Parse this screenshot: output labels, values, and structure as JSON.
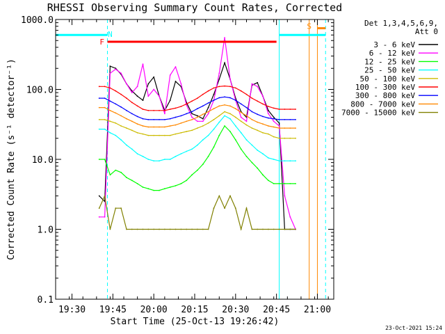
{
  "chart_data": {
    "type": "line",
    "title": "RHESSI Observing Summary Count Rates, Corrected",
    "xlabel": "Start Time (25-Oct-13 19:26:42)",
    "ylabel": "Corrected Count Rate (s⁻¹ detector⁻¹)",
    "yscale": "log",
    "ylim": [
      0.1,
      1000
    ],
    "xlim": [
      "19:24",
      "21:06"
    ],
    "x_ticks": [
      "19:30",
      "19:45",
      "20:00",
      "20:15",
      "20:30",
      "20:45",
      "21:00"
    ],
    "y_ticks": [
      "0.1",
      "1.0",
      "10.0",
      "100.0",
      "1000.0"
    ],
    "legend_header": [
      "Det 1,3,4,5,6,9,",
      "Att 0"
    ],
    "legend_position": "right",
    "timestamp": "23-Oct-2021 15:24",
    "series": [
      {
        "name": "3 - 6 keV",
        "color": "#000000",
        "x": [
          "19:40",
          "19:42",
          "19:44",
          "19:46",
          "19:48",
          "19:50",
          "19:52",
          "19:54",
          "19:56",
          "19:58",
          "20:00",
          "20:02",
          "20:04",
          "20:06",
          "20:08",
          "20:10",
          "20:12",
          "20:14",
          "20:16",
          "20:18",
          "20:20",
          "20:22",
          "20:24",
          "20:26",
          "20:28",
          "20:30",
          "20:32",
          "20:34",
          "20:36",
          "20:38",
          "20:40",
          "20:42",
          "20:44",
          "20:46",
          "20:48",
          "20:50",
          "20:52"
        ],
        "y": [
          3,
          2.5,
          215,
          200,
          165,
          120,
          95,
          80,
          70,
          120,
          150,
          80,
          50,
          70,
          130,
          110,
          65,
          45,
          42,
          38,
          55,
          85,
          140,
          240,
          140,
          75,
          48,
          40,
          115,
          125,
          80,
          50,
          40,
          33,
          1,
          1,
          1
        ]
      },
      {
        "name": "6 - 12 keV",
        "color": "#ff00ff",
        "x": [
          "19:40",
          "19:42",
          "19:44",
          "19:46",
          "19:48",
          "19:50",
          "19:52",
          "19:54",
          "19:56",
          "19:58",
          "20:00",
          "20:02",
          "20:04",
          "20:06",
          "20:08",
          "20:10",
          "20:12",
          "20:14",
          "20:16",
          "20:18",
          "20:20",
          "20:22",
          "20:24",
          "20:26",
          "20:28",
          "20:30",
          "20:32",
          "20:34",
          "20:36",
          "20:38",
          "20:40",
          "20:42",
          "20:44",
          "20:46",
          "20:48",
          "20:50",
          "20:52"
        ],
        "y": [
          1.5,
          1.5,
          170,
          195,
          170,
          120,
          90,
          110,
          230,
          80,
          100,
          80,
          45,
          160,
          210,
          120,
          60,
          40,
          35,
          35,
          45,
          70,
          170,
          550,
          140,
          70,
          40,
          35,
          120,
          110,
          80,
          45,
          35,
          30,
          3,
          1.5,
          1
        ]
      },
      {
        "name": "12 - 25 keV",
        "color": "#00ff00",
        "x": [
          "19:40",
          "19:42",
          "19:44",
          "19:46",
          "19:48",
          "19:50",
          "19:52",
          "19:54",
          "19:56",
          "19:58",
          "20:00",
          "20:02",
          "20:04",
          "20:06",
          "20:08",
          "20:10",
          "20:12",
          "20:14",
          "20:16",
          "20:18",
          "20:20",
          "20:22",
          "20:24",
          "20:26",
          "20:28",
          "20:30",
          "20:32",
          "20:34",
          "20:36",
          "20:38",
          "20:40",
          "20:42",
          "20:44",
          "20:46",
          "20:48",
          "20:50",
          "20:52"
        ],
        "y": [
          10,
          10,
          6,
          7,
          6.5,
          5.5,
          5,
          4.5,
          4,
          3.8,
          3.6,
          3.6,
          3.8,
          4,
          4.2,
          4.5,
          5,
          6,
          7,
          8.5,
          11,
          15,
          22,
          30,
          25,
          19,
          14,
          11,
          9,
          7.5,
          6,
          5,
          4.5,
          4.5,
          4.5,
          4.5,
          4.5
        ]
      },
      {
        "name": "25 - 50 keV",
        "color": "#00ffff",
        "x": [
          "19:40",
          "19:42",
          "19:44",
          "19:46",
          "19:48",
          "19:50",
          "19:52",
          "19:54",
          "19:56",
          "19:58",
          "20:00",
          "20:02",
          "20:04",
          "20:06",
          "20:08",
          "20:10",
          "20:12",
          "20:14",
          "20:16",
          "20:18",
          "20:20",
          "20:22",
          "20:24",
          "20:26",
          "20:28",
          "20:30",
          "20:32",
          "20:34",
          "20:36",
          "20:38",
          "20:40",
          "20:42",
          "20:44",
          "20:46",
          "20:48",
          "20:50",
          "20:52"
        ],
        "y": [
          27,
          27,
          24,
          22,
          19,
          16,
          14,
          12,
          11,
          10,
          9.5,
          9.5,
          10,
          10,
          11,
          12,
          13,
          14,
          16,
          19,
          22,
          27,
          34,
          42,
          38,
          30,
          24,
          19,
          16,
          13.5,
          12,
          10.5,
          10,
          9.5,
          9.5,
          9.5,
          9.5
        ]
      },
      {
        "name": "50 - 100 keV",
        "color": "#ccbb00",
        "x": [
          "19:40",
          "19:42",
          "19:44",
          "19:46",
          "19:48",
          "19:50",
          "19:52",
          "19:54",
          "19:56",
          "19:58",
          "20:00",
          "20:02",
          "20:04",
          "20:06",
          "20:08",
          "20:10",
          "20:12",
          "20:14",
          "20:16",
          "20:18",
          "20:20",
          "20:22",
          "20:24",
          "20:26",
          "20:28",
          "20:30",
          "20:32",
          "20:34",
          "20:36",
          "20:38",
          "20:40",
          "20:42",
          "20:44",
          "20:46",
          "20:48",
          "20:50",
          "20:52"
        ],
        "y": [
          37,
          37,
          35,
          33,
          30,
          28,
          26,
          24,
          23,
          22,
          22,
          22,
          22,
          22,
          23,
          24,
          25,
          26,
          28,
          30,
          33,
          37,
          42,
          48,
          45,
          40,
          35,
          31,
          28,
          26,
          24,
          23,
          21,
          20,
          20,
          20,
          20
        ]
      },
      {
        "name": "100 - 300 keV",
        "color": "#ff0000",
        "x": [
          "19:40",
          "19:42",
          "19:44",
          "19:46",
          "19:48",
          "19:50",
          "19:52",
          "19:54",
          "19:56",
          "19:58",
          "20:00",
          "20:02",
          "20:04",
          "20:06",
          "20:08",
          "20:10",
          "20:12",
          "20:14",
          "20:16",
          "20:18",
          "20:20",
          "20:22",
          "20:24",
          "20:26",
          "20:28",
          "20:30",
          "20:32",
          "20:34",
          "20:36",
          "20:38",
          "20:40",
          "20:42",
          "20:44",
          "20:46",
          "20:48",
          "20:50",
          "20:52"
        ],
        "y": [
          110,
          110,
          105,
          95,
          85,
          75,
          65,
          58,
          52,
          50,
          50,
          50,
          50,
          52,
          54,
          57,
          62,
          68,
          75,
          85,
          95,
          105,
          110,
          112,
          110,
          105,
          95,
          85,
          75,
          68,
          62,
          57,
          54,
          52,
          52,
          52,
          52
        ]
      },
      {
        "name": "300 - 800 keV",
        "color": "#0000ff",
        "x": [
          "19:40",
          "19:42",
          "19:44",
          "19:46",
          "19:48",
          "19:50",
          "19:52",
          "19:54",
          "19:56",
          "19:58",
          "20:00",
          "20:02",
          "20:04",
          "20:06",
          "20:08",
          "20:10",
          "20:12",
          "20:14",
          "20:16",
          "20:18",
          "20:20",
          "20:22",
          "20:24",
          "20:26",
          "20:28",
          "20:30",
          "20:32",
          "20:34",
          "20:36",
          "20:38",
          "20:40",
          "20:42",
          "20:44",
          "20:46",
          "20:48",
          "20:50",
          "20:52"
        ],
        "y": [
          75,
          75,
          68,
          62,
          56,
          50,
          45,
          41,
          38,
          37,
          37,
          37,
          37,
          38,
          40,
          42,
          45,
          48,
          53,
          58,
          64,
          70,
          76,
          78,
          76,
          70,
          62,
          55,
          48,
          44,
          41,
          39,
          38,
          37,
          37,
          37,
          37
        ]
      },
      {
        "name": "800 - 7000 keV",
        "color": "#ff8800",
        "x": [
          "19:40",
          "19:42",
          "19:44",
          "19:46",
          "19:48",
          "19:50",
          "19:52",
          "19:54",
          "19:56",
          "19:58",
          "20:00",
          "20:02",
          "20:04",
          "20:06",
          "20:08",
          "20:10",
          "20:12",
          "20:14",
          "20:16",
          "20:18",
          "20:20",
          "20:22",
          "20:24",
          "20:26",
          "20:28",
          "20:30",
          "20:32",
          "20:34",
          "20:36",
          "20:38",
          "20:40",
          "20:42",
          "20:44",
          "20:46",
          "20:48",
          "20:50",
          "20:52"
        ],
        "y": [
          55,
          55,
          50,
          46,
          42,
          38,
          35,
          32,
          30,
          29,
          29,
          29,
          29,
          30,
          31,
          33,
          35,
          37,
          40,
          44,
          48,
          53,
          58,
          60,
          58,
          53,
          47,
          42,
          37,
          34,
          32,
          30,
          29,
          28,
          28,
          28,
          28
        ]
      },
      {
        "name": "7000 - 15000 keV",
        "color": "#808000",
        "x": [
          "19:40",
          "19:42",
          "19:44",
          "19:46",
          "19:48",
          "19:50",
          "19:52",
          "19:54",
          "19:56",
          "19:58",
          "20:00",
          "20:02",
          "20:04",
          "20:06",
          "20:08",
          "20:10",
          "20:12",
          "20:14",
          "20:16",
          "20:18",
          "20:20",
          "20:22",
          "20:24",
          "20:26",
          "20:28",
          "20:30",
          "20:32",
          "20:34",
          "20:36",
          "20:38",
          "20:40",
          "20:42",
          "20:44",
          "20:46",
          "20:48",
          "20:50",
          "20:52"
        ],
        "y": [
          2,
          3,
          1,
          2,
          2,
          1,
          1,
          1,
          1,
          1,
          1,
          1,
          1,
          1,
          1,
          1,
          1,
          1,
          1,
          1,
          1,
          2,
          3,
          2,
          3,
          2,
          1,
          2,
          1,
          1,
          1,
          1,
          1,
          1,
          1,
          1,
          1
        ]
      }
    ],
    "intervals": [
      {
        "label": "",
        "color": "#00ffff",
        "start": "19:24",
        "end": "19:43",
        "level": 600
      },
      {
        "label": "",
        "color": "#00ffff",
        "start": "20:46",
        "end": "21:03",
        "level": 600
      },
      {
        "label": "F",
        "color": "#ff0000",
        "start": "19:43",
        "end": "20:45",
        "level": 480
      },
      {
        "label": "S",
        "color": "#ff8800",
        "start": "21:00",
        "end": "21:03",
        "level": 750
      }
    ],
    "interval_labels": [
      {
        "text": "N",
        "color": "#00ffff",
        "at": "19:44",
        "level": 620
      },
      {
        "text": "F",
        "color": "#ff0000",
        "at": "19:41",
        "level": 480
      },
      {
        "text": "S",
        "color": "#ff8800",
        "at": "20:57",
        "level": 800
      }
    ],
    "vlines": [
      {
        "t": "19:24",
        "color": "#00ffff",
        "dashed": false
      },
      {
        "t": "19:43",
        "color": "#00ffff",
        "dashed": true
      },
      {
        "t": "20:46",
        "color": "#00ffff",
        "dashed": false
      },
      {
        "t": "20:57",
        "color": "#ff8800",
        "dashed": false
      },
      {
        "t": "21:00",
        "color": "#ff8800",
        "dashed": false
      },
      {
        "t": "21:03",
        "color": "#00ffff",
        "dashed": true
      }
    ]
  }
}
